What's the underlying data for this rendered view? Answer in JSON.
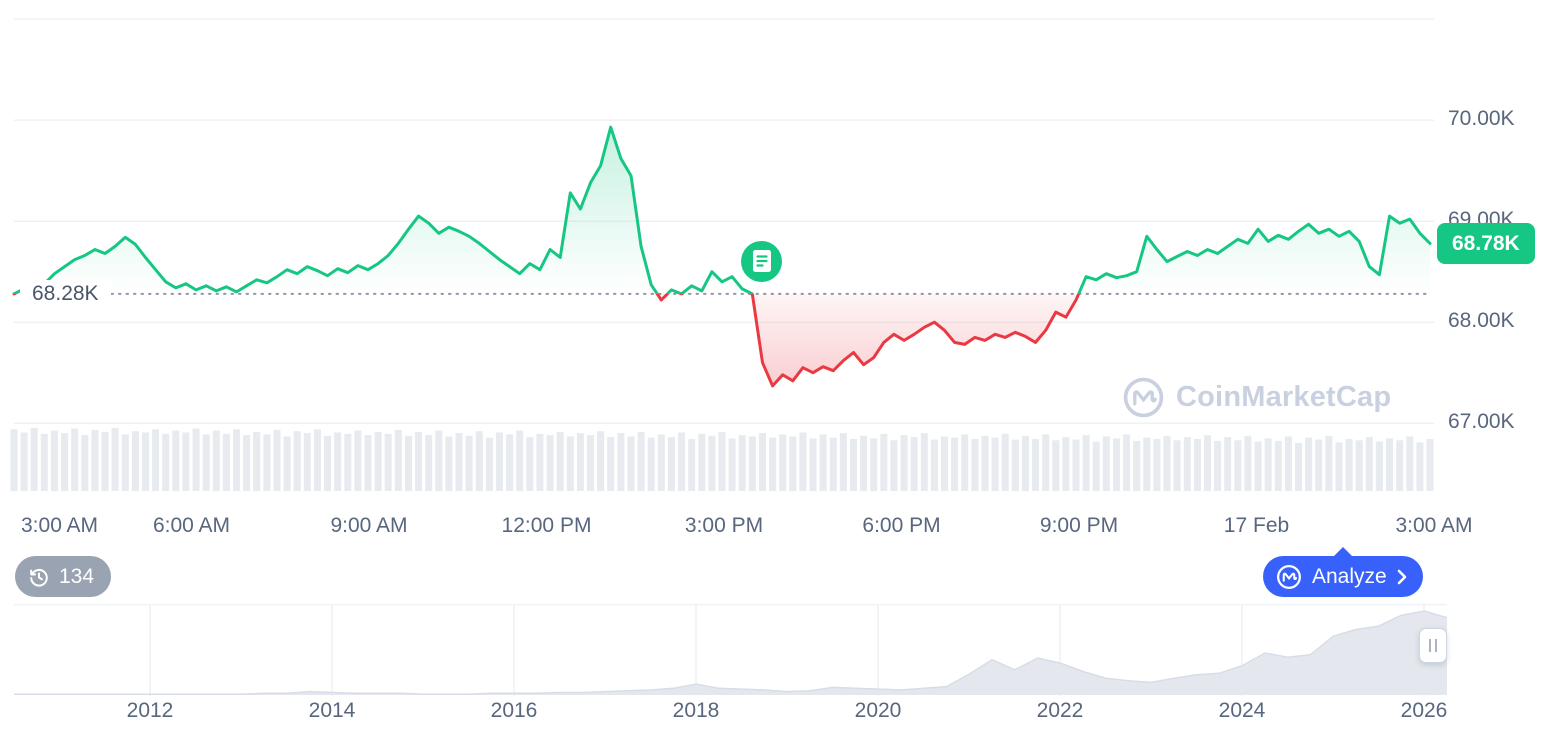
{
  "colors": {
    "green": "#16c784",
    "red": "#ea3943",
    "blue": "#3861fb",
    "axis_text": "#58667e",
    "baseline_text": "#4a5568",
    "grid": "#eff2f5",
    "baseline_dotted": "#8b96aa",
    "volume_bar": "#e7eaef",
    "nav_fill": "#e4e8ee",
    "nav_edge": "#d7dde7",
    "nav_grid": "#eef1f5",
    "watermark": "#c9d1e1",
    "pill_gray": "#9aa3b2"
  },
  "watermark": {
    "text": "CoinMarketCap"
  },
  "toolbar": {
    "history_count": "134",
    "analyze_label": "Analyze"
  },
  "icons": {
    "news_marker": "news-document-icon",
    "history": "history-clock-icon",
    "analyze_logo": "coinmarketcap-logo",
    "analyze_chevron": "chevron-right-icon",
    "watermark_logo": "coinmarketcap-logo",
    "handle": "drag-handle"
  },
  "chart_data": {
    "type": "line",
    "y_axis": {
      "range": [
        66.3,
        71.05
      ],
      "grid_values": [
        71,
        70,
        69,
        68,
        67
      ],
      "ticks": [
        {
          "value": 70,
          "label": "70.00K"
        },
        {
          "value": 69,
          "label": "69.00K"
        },
        {
          "value": 68,
          "label": "68.00K"
        },
        {
          "value": 67,
          "label": "67.00K"
        }
      ]
    },
    "x_axis": {
      "ticks": [
        "3:00 AM",
        "6:00 AM",
        "9:00 AM",
        "12:00 PM",
        "3:00 PM",
        "6:00 PM",
        "9:00 PM",
        "17 Feb",
        "3:00 AM"
      ]
    },
    "baseline": {
      "value": 68.28,
      "label": "68.28K"
    },
    "current_price": {
      "value": 68.78,
      "label": "68.78K"
    },
    "annotation_marker": {
      "kind": "news",
      "x_fraction": 0.528
    },
    "series": [
      {
        "name": "price",
        "values": [
          68.28,
          68.33,
          68.3,
          68.38,
          68.48,
          68.55,
          68.62,
          68.66,
          68.72,
          68.68,
          68.75,
          68.84,
          68.77,
          68.64,
          68.52,
          68.4,
          68.34,
          68.38,
          68.32,
          68.36,
          68.31,
          68.35,
          68.3,
          68.36,
          68.42,
          68.39,
          68.45,
          68.52,
          68.48,
          68.55,
          68.51,
          68.46,
          68.53,
          68.49,
          68.56,
          68.52,
          68.58,
          68.66,
          68.78,
          68.92,
          69.05,
          68.98,
          68.88,
          68.94,
          68.9,
          68.85,
          68.78,
          68.7,
          68.62,
          68.55,
          68.48,
          68.58,
          68.52,
          68.72,
          68.64,
          69.28,
          69.12,
          69.38,
          69.55,
          69.93,
          69.62,
          69.45,
          68.75,
          68.37,
          68.22,
          68.32,
          68.28,
          68.36,
          68.31,
          68.5,
          68.4,
          68.45,
          68.33,
          68.28,
          67.6,
          67.37,
          67.48,
          67.42,
          67.55,
          67.5,
          67.56,
          67.52,
          67.62,
          67.7,
          67.58,
          67.65,
          67.8,
          67.88,
          67.82,
          67.88,
          67.95,
          68.0,
          67.92,
          67.8,
          67.78,
          67.85,
          67.82,
          67.88,
          67.85,
          67.9,
          67.86,
          67.8,
          67.92,
          68.1,
          68.05,
          68.22,
          68.45,
          68.42,
          68.48,
          68.44,
          68.46,
          68.5,
          68.85,
          68.72,
          68.6,
          68.65,
          68.7,
          68.66,
          68.72,
          68.68,
          68.75,
          68.82,
          68.78,
          68.92,
          68.8,
          68.86,
          68.82,
          68.9,
          68.97,
          68.88,
          68.92,
          68.85,
          68.9,
          68.8,
          68.55,
          68.47,
          69.05,
          68.98,
          69.02,
          68.88,
          68.78
        ]
      }
    ],
    "volume": {
      "values": [
        0.95,
        0.9,
        0.97,
        0.88,
        0.93,
        0.89,
        0.96,
        0.86,
        0.94,
        0.91,
        0.97,
        0.87,
        0.92,
        0.9,
        0.95,
        0.88,
        0.93,
        0.9,
        0.96,
        0.87,
        0.93,
        0.88,
        0.95,
        0.86,
        0.91,
        0.87,
        0.94,
        0.84,
        0.92,
        0.89,
        0.95,
        0.85,
        0.9,
        0.88,
        0.93,
        0.86,
        0.91,
        0.88,
        0.94,
        0.85,
        0.91,
        0.86,
        0.93,
        0.84,
        0.89,
        0.85,
        0.92,
        0.82,
        0.9,
        0.87,
        0.93,
        0.83,
        0.88,
        0.86,
        0.91,
        0.84,
        0.89,
        0.86,
        0.92,
        0.83,
        0.89,
        0.84,
        0.91,
        0.82,
        0.87,
        0.83,
        0.9,
        0.8,
        0.88,
        0.85,
        0.91,
        0.81,
        0.86,
        0.84,
        0.89,
        0.82,
        0.87,
        0.84,
        0.9,
        0.81,
        0.87,
        0.82,
        0.89,
        0.8,
        0.85,
        0.81,
        0.88,
        0.78,
        0.86,
        0.83,
        0.89,
        0.79,
        0.84,
        0.82,
        0.87,
        0.8,
        0.85,
        0.82,
        0.88,
        0.79,
        0.85,
        0.8,
        0.87,
        0.78,
        0.83,
        0.79,
        0.86,
        0.76,
        0.84,
        0.81,
        0.87,
        0.77,
        0.82,
        0.8,
        0.85,
        0.78,
        0.83,
        0.8,
        0.86,
        0.77,
        0.83,
        0.78,
        0.85,
        0.76,
        0.81,
        0.77,
        0.84,
        0.74,
        0.82,
        0.79,
        0.85,
        0.75,
        0.8,
        0.78,
        0.83,
        0.76,
        0.81,
        0.78,
        0.84,
        0.75,
        0.8
      ]
    },
    "navigator": {
      "years": [
        "2012",
        "2014",
        "2016",
        "2018",
        "2020",
        "2022",
        "2024",
        "2026"
      ],
      "values": [
        0.01,
        0.01,
        0.01,
        0.01,
        0.01,
        0.01,
        0.01,
        0.01,
        0.01,
        0.01,
        0.01,
        0.02,
        0.02,
        0.04,
        0.03,
        0.02,
        0.02,
        0.02,
        0.01,
        0.01,
        0.01,
        0.02,
        0.02,
        0.02,
        0.03,
        0.03,
        0.04,
        0.05,
        0.06,
        0.08,
        0.13,
        0.08,
        0.07,
        0.06,
        0.04,
        0.05,
        0.09,
        0.08,
        0.07,
        0.06,
        0.08,
        0.1,
        0.25,
        0.42,
        0.3,
        0.44,
        0.38,
        0.28,
        0.2,
        0.17,
        0.15,
        0.2,
        0.24,
        0.26,
        0.35,
        0.5,
        0.45,
        0.48,
        0.7,
        0.78,
        0.82,
        0.95,
        1.0,
        0.92
      ]
    }
  }
}
